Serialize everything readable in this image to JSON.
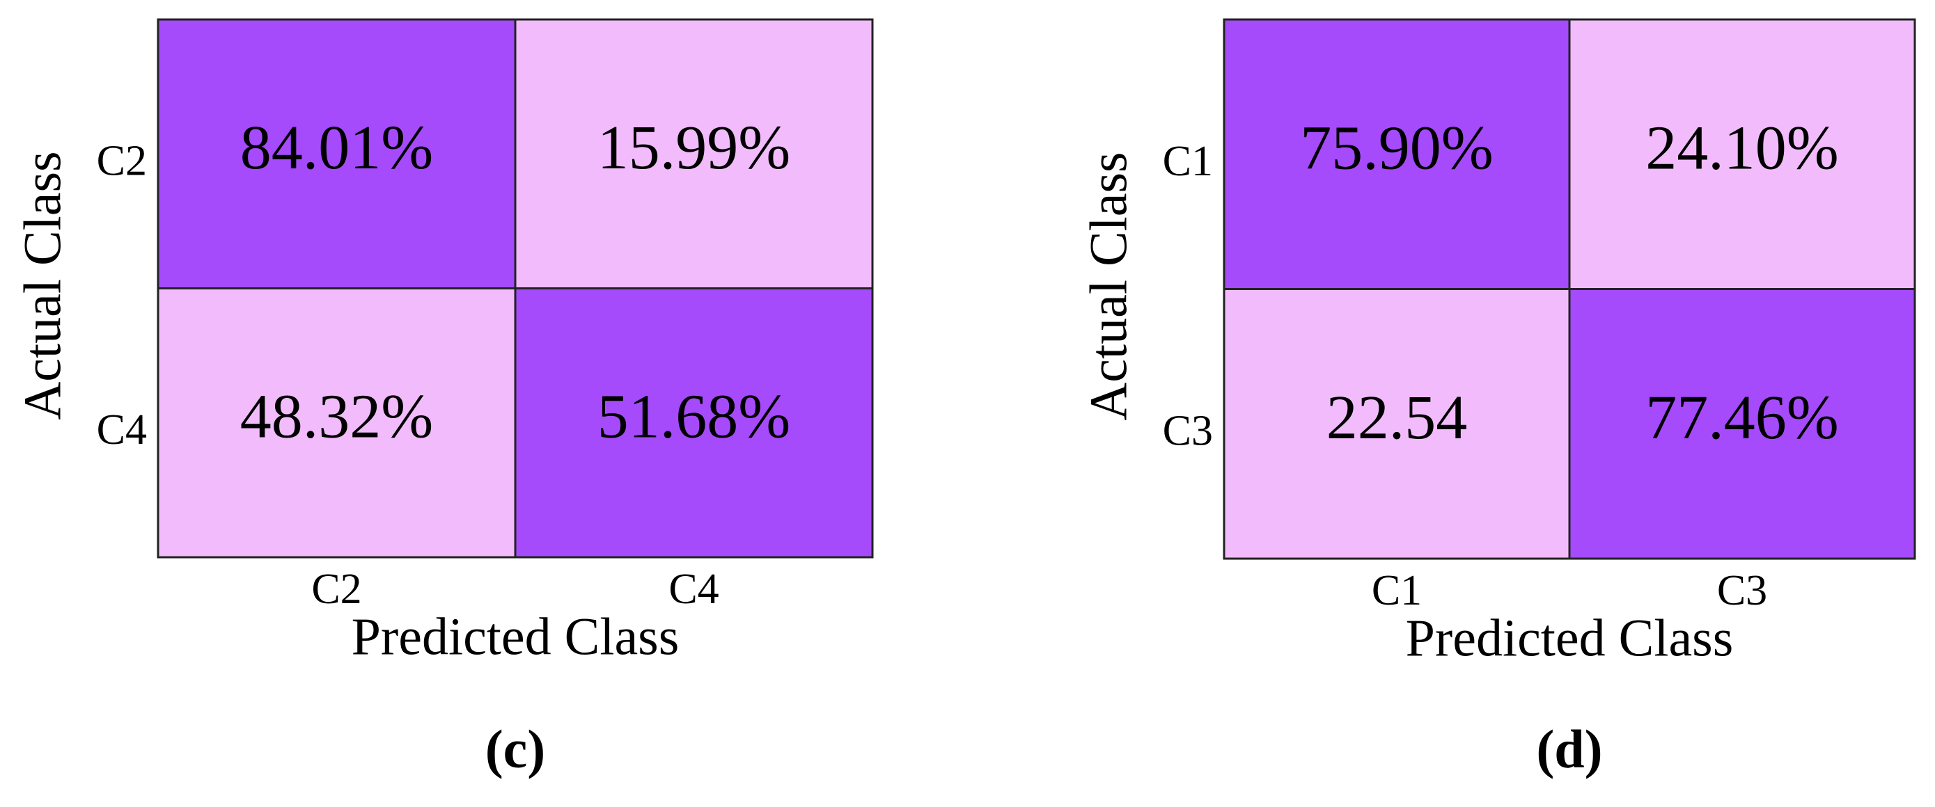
{
  "chart_data": [
    {
      "type": "heatmap",
      "caption": "(c)",
      "xlabel": "Predicted Class",
      "ylabel": "Actual Class",
      "x_categories": [
        "C2",
        "C4"
      ],
      "y_categories": [
        "C2",
        "C4"
      ],
      "values": [
        [
          84.01,
          15.99
        ],
        [
          48.32,
          51.68
        ]
      ],
      "value_labels": [
        [
          "84.01%",
          "15.99%"
        ],
        [
          "48.32%",
          "51.68%"
        ]
      ],
      "colors": [
        "#f2bcfc",
        "#a64bfc"
      ]
    },
    {
      "type": "heatmap",
      "caption": "(d)",
      "xlabel": "Predicted Class",
      "ylabel": "Actual Class",
      "x_categories": [
        "C1",
        "C3"
      ],
      "y_categories": [
        "C1",
        "C3"
      ],
      "values": [
        [
          75.9,
          24.1
        ],
        [
          22.54,
          77.46
        ]
      ],
      "value_labels": [
        [
          "75.90%",
          "24.10%"
        ],
        [
          "22.54",
          "77.46%"
        ]
      ],
      "colors": [
        "#f2bcfc",
        "#a64bfc"
      ]
    }
  ]
}
